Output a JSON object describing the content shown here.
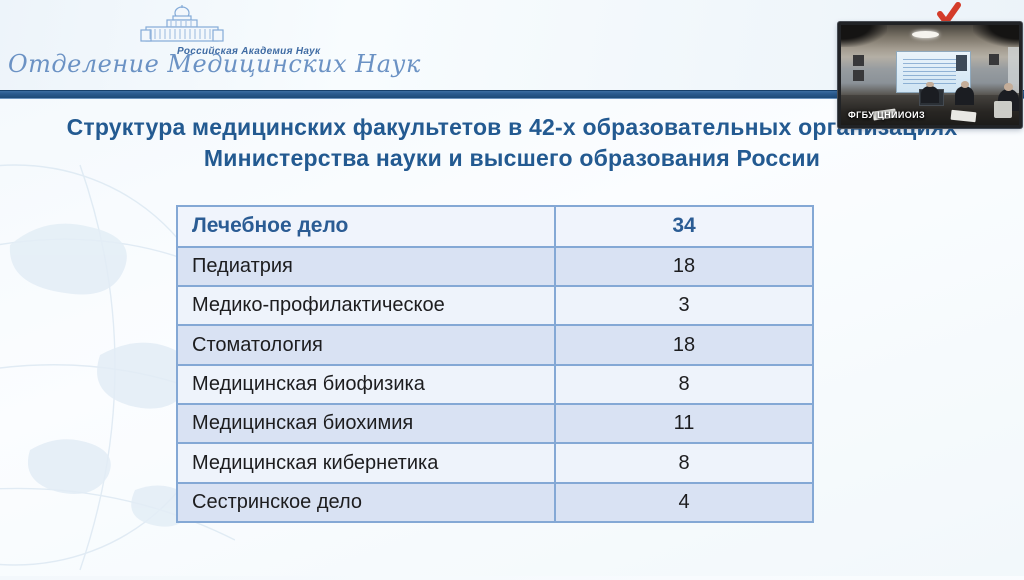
{
  "header": {
    "org_small": "Российская Академия Наук",
    "org_script": "Отделение Медицинских Наук"
  },
  "title": {
    "line1": "Структура медицинских факультетов в 42-х образовательных организациях",
    "line2": "Министерства науки и высшего образования России"
  },
  "table": {
    "rows": [
      {
        "label": "Лечебное дело",
        "value": "34",
        "header": true
      },
      {
        "label": "Педиатрия",
        "value": "18"
      },
      {
        "label": "Медико-профилактическое",
        "value": "3"
      },
      {
        "label": "Стоматология",
        "value": "18"
      },
      {
        "label": "Медицинская биофизика",
        "value": "8"
      },
      {
        "label": "Медицинская биохимия",
        "value": "11"
      },
      {
        "label": "Медицинская кибернетика",
        "value": "8"
      },
      {
        "label": "Сестринское дело",
        "value": "4"
      }
    ]
  },
  "webcam": {
    "label": "ФГБУ ЦНИИОИЗ"
  },
  "colors": {
    "title_blue": "#235a91",
    "bar_blue": "#2a5a8e",
    "table_border": "#84a8d5",
    "row_light": "#eef3fb",
    "row_alt": "#d9e2f3",
    "header_text": "#2b5c94",
    "red_mark": "#d43c2a"
  }
}
